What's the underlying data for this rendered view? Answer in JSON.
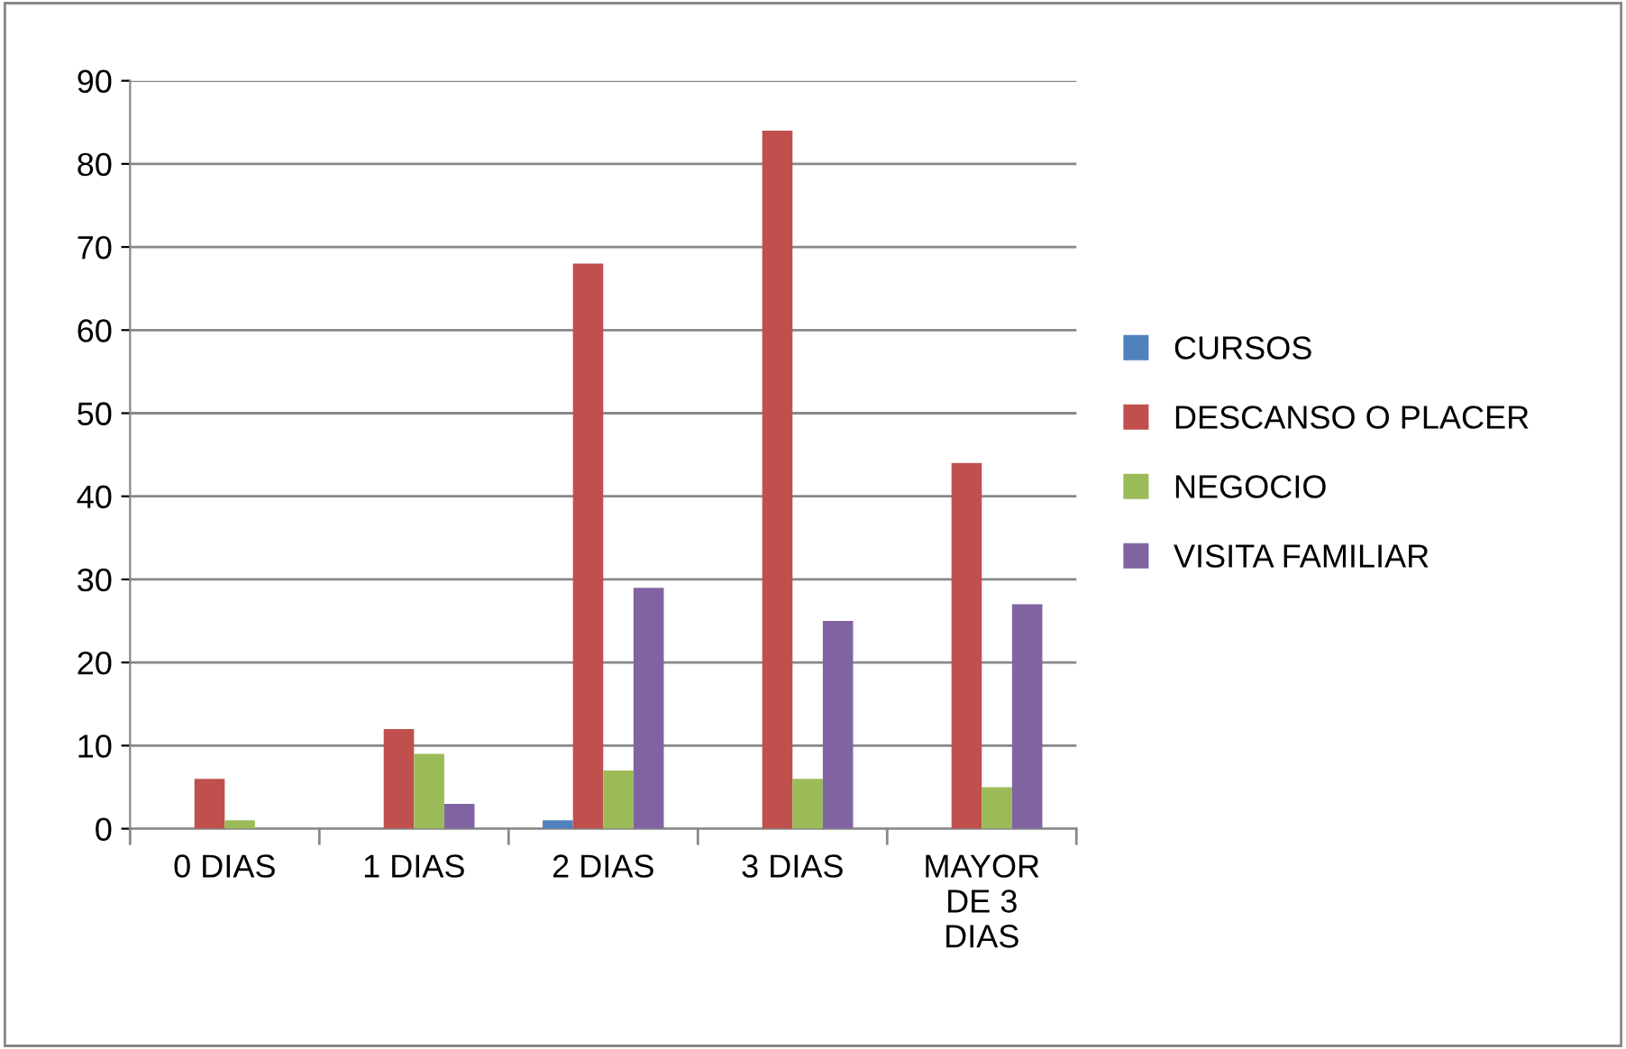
{
  "chart_data": {
    "type": "bar",
    "categories": [
      "0 DIAS",
      "1 DIAS",
      "2 DIAS",
      "3 DIAS",
      "MAYOR DE 3 DIAS"
    ],
    "series": [
      {
        "name": "CURSOS",
        "color": "#4f81bd",
        "values": [
          0,
          0,
          1,
          0,
          0
        ]
      },
      {
        "name": "DESCANSO O PLACER",
        "color": "#c0504d",
        "values": [
          6,
          12,
          68,
          84,
          44
        ]
      },
      {
        "name": "NEGOCIO",
        "color": "#9bbb59",
        "values": [
          1,
          9,
          7,
          6,
          5
        ]
      },
      {
        "name": "VISITA FAMILIAR",
        "color": "#8064a2",
        "values": [
          0,
          3,
          29,
          25,
          27
        ]
      }
    ],
    "ylim": [
      0,
      90
    ],
    "yticks": [
      0,
      10,
      20,
      30,
      40,
      50,
      60,
      70,
      80,
      90
    ],
    "grid": "y",
    "legend": "right"
  }
}
